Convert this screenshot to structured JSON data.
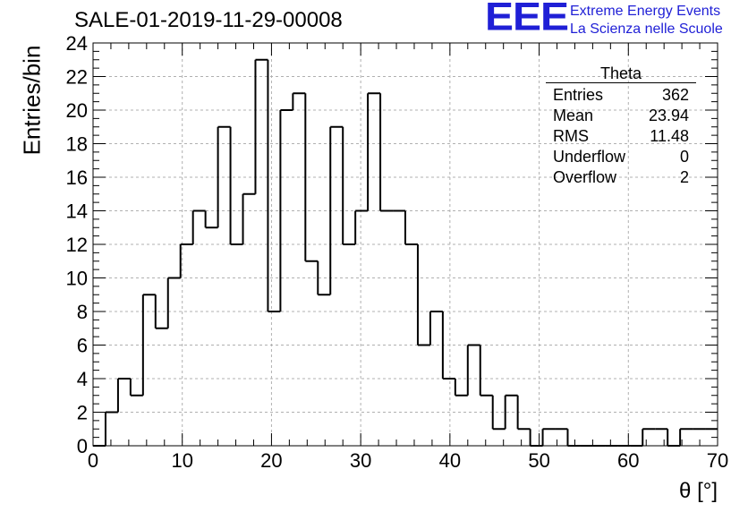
{
  "title": "SALE-01-2019-11-29-00008",
  "logo": {
    "mark": "EEE",
    "line1": "Extreme Energy Events",
    "line2": "La Scienza nelle Scuole",
    "color": "#1f1fd6"
  },
  "stats": {
    "title": "Theta",
    "rows": [
      {
        "label": "Entries",
        "value": "362"
      },
      {
        "label": "Mean",
        "value": "23.94"
      },
      {
        "label": "RMS",
        "value": "11.48"
      },
      {
        "label": "Underflow",
        "value": "0"
      },
      {
        "label": "Overflow",
        "value": "2"
      }
    ]
  },
  "chart_data": {
    "type": "bar",
    "style": "step histogram",
    "xlabel": "θ [°]",
    "ylabel": "Entries/bin",
    "xlim": [
      0,
      70
    ],
    "ylim": [
      0,
      24
    ],
    "grid": true,
    "bin_width": 1.4,
    "x_ticks": [
      0,
      10,
      20,
      30,
      40,
      50,
      60,
      70
    ],
    "y_ticks": [
      0,
      2,
      4,
      6,
      8,
      10,
      12,
      14,
      16,
      18,
      20,
      22,
      24
    ],
    "values": [
      0,
      2,
      4,
      3,
      9,
      7,
      10,
      12,
      14,
      13,
      19,
      12,
      15,
      23,
      8,
      20,
      21,
      11,
      9,
      19,
      12,
      14,
      21,
      14,
      14,
      12,
      6,
      8,
      4,
      3,
      6,
      3,
      1,
      3,
      1,
      0,
      1,
      1,
      0,
      0,
      0,
      0,
      0,
      0,
      1,
      1,
      0,
      1,
      1,
      1
    ]
  }
}
